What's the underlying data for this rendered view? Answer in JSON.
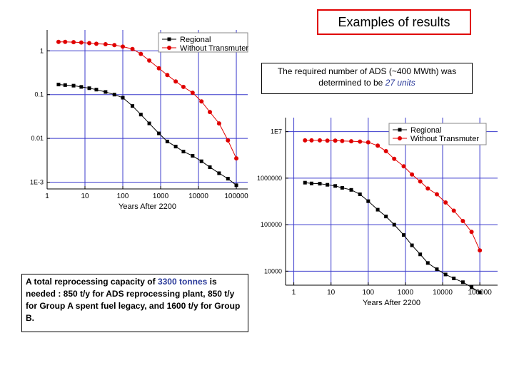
{
  "slide": {
    "title": "Examples of results",
    "note": {
      "part1": "The required number of ADS  (~400 MWth) was determined to be ",
      "highlight": "27 units"
    },
    "capacity": {
      "part1": "A total reprocessing capacity of ",
      "highlight": "3300 tonnes",
      "part2": " is needed : 850 t/y for ADS reprocessing plant, 850 t/y for Group A spent fuel legacy, and 1600 t/y for Group B."
    }
  },
  "colors": {
    "regional": "#000000",
    "without": "#e00000",
    "grid": "#3a3acc",
    "title_border": "#e00000",
    "highlight": "#2a3a9a"
  },
  "chart_data": [
    {
      "type": "scatter",
      "xscale": "log",
      "yscale": "log",
      "xlabel": "Years After 2200",
      "ylabel": "",
      "xticks": [
        "1",
        "10",
        "100",
        "1000",
        "10000",
        "100000"
      ],
      "yticks": [
        "1",
        "0.1",
        "0.01",
        "1E-3"
      ],
      "xlim": [
        1,
        200000
      ],
      "ylim": [
        0.0007,
        3
      ],
      "grid": true,
      "legend_position": "top-right",
      "series": [
        {
          "name": "Without Transmuter",
          "x": [
            2,
            3,
            5,
            8,
            13,
            20,
            35,
            60,
            100,
            180,
            300,
            500,
            900,
            1500,
            2500,
            4000,
            7000,
            12000,
            20000,
            35000,
            60000,
            100000
          ],
          "y": [
            1.6,
            1.6,
            1.58,
            1.55,
            1.5,
            1.45,
            1.42,
            1.35,
            1.25,
            1.1,
            0.85,
            0.6,
            0.4,
            0.28,
            0.2,
            0.15,
            0.11,
            0.07,
            0.04,
            0.022,
            0.009,
            0.0035
          ]
        },
        {
          "name": "Regional",
          "x": [
            2,
            3,
            5,
            8,
            13,
            20,
            35,
            60,
            100,
            180,
            300,
            500,
            900,
            1500,
            2500,
            4000,
            7000,
            12000,
            20000,
            35000,
            60000,
            100000
          ],
          "y": [
            0.17,
            0.165,
            0.16,
            0.15,
            0.14,
            0.13,
            0.115,
            0.1,
            0.085,
            0.055,
            0.035,
            0.022,
            0.013,
            0.0085,
            0.0065,
            0.005,
            0.004,
            0.003,
            0.0022,
            0.0016,
            0.0012,
            0.00085
          ]
        }
      ]
    },
    {
      "type": "scatter",
      "xscale": "log",
      "yscale": "log",
      "xlabel": "Years After 2200",
      "ylabel": "",
      "xticks": [
        "1",
        "10",
        "100",
        "1000",
        "10000",
        "100000"
      ],
      "yticks": [
        "1E7",
        "1000000",
        "100000",
        "10000"
      ],
      "xlim": [
        0.6,
        300000
      ],
      "ylim": [
        5000,
        20000000
      ],
      "grid": true,
      "legend_position": "top-right",
      "series": [
        {
          "name": "Regional",
          "x": [
            2,
            3,
            5,
            8,
            13,
            20,
            35,
            60,
            100,
            180,
            300,
            500,
            900,
            1500,
            2500,
            4000,
            7000,
            12000,
            20000,
            35000,
            60000,
            100000
          ],
          "y": [
            800000,
            770000,
            760000,
            720000,
            680000,
            620000,
            560000,
            450000,
            320000,
            210000,
            150000,
            100000,
            60000,
            36000,
            23000,
            15000,
            11000,
            8500,
            7000,
            5800,
            4500,
            3500
          ]
        },
        {
          "name": "Without Transmuter",
          "x": [
            2,
            3,
            5,
            8,
            13,
            20,
            35,
            60,
            100,
            180,
            300,
            500,
            900,
            1500,
            2500,
            4000,
            7000,
            12000,
            20000,
            35000,
            60000,
            100000
          ],
          "y": [
            6500000,
            6500000,
            6500000,
            6400000,
            6400000,
            6300000,
            6200000,
            6100000,
            5900000,
            5000000,
            3800000,
            2600000,
            1800000,
            1200000,
            850000,
            600000,
            450000,
            300000,
            200000,
            120000,
            70000,
            28000
          ]
        }
      ]
    }
  ]
}
